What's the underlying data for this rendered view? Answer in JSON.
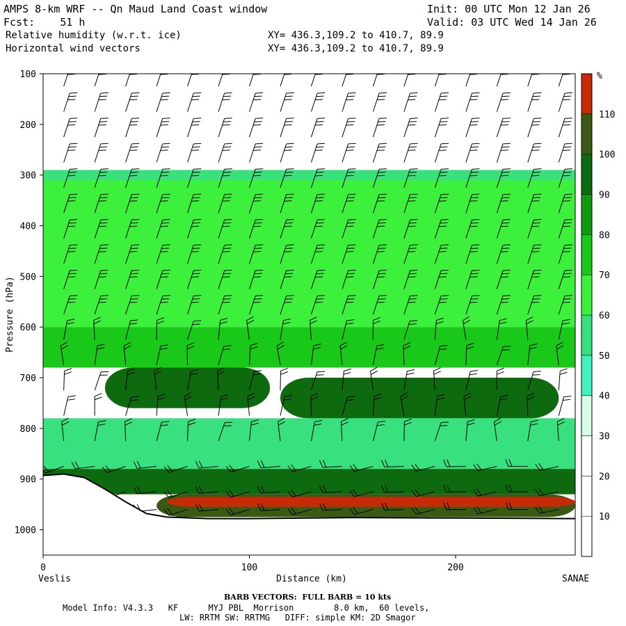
{
  "header": {
    "line1_left": "AMPS 8-km WRF -- Qn Maud Land Coast window",
    "line2_left": "Fcst:    51 h",
    "line3_left": "Relative humidity (w.r.t. ice)",
    "line4_left": "Horizontal wind vectors",
    "line1_right": "Init: 00 UTC Mon 12 Jan 26",
    "line2_right": "Valid: 03 UTC Wed 14 Jan 26",
    "line3_mid": "XY= 436.3,109.2 to 410.7, 89.9",
    "line4_mid": "XY= 436.3,109.2 to 410.7, 89.9"
  },
  "chart_data": {
    "type": "heatmap",
    "title": "Relative humidity (w.r.t. ice)",
    "xlabel": "Distance (km)",
    "ylabel": "Pressure (hPa)",
    "xlim": [
      0,
      258
    ],
    "ylim": [
      1050,
      100
    ],
    "x_ticks": [
      0,
      100,
      200
    ],
    "y_ticks": [
      100,
      200,
      300,
      400,
      500,
      600,
      700,
      800,
      900,
      1000
    ],
    "x_end_labels": {
      "left": "Veslis",
      "right": "SANAE"
    },
    "colorbar": {
      "unit": "%",
      "levels": [
        10,
        20,
        30,
        40,
        50,
        60,
        70,
        80,
        90,
        100,
        110
      ],
      "colors": [
        "#ffffff",
        "#ffffff",
        "#ffffff",
        "#d6fde6",
        "#43f0c0",
        "#39e07e",
        "#3cf03c",
        "#19c819",
        "#0f9a0f",
        "#0e6a0e",
        "#3a5a14",
        "#c62a06"
      ]
    },
    "regions": [
      {
        "name": "upper-dry",
        "rh": 0,
        "p_top": 100,
        "p_bottom": 290
      },
      {
        "name": "tropopause-moist",
        "rh": 55,
        "p_top": 290,
        "p_bottom": 310
      },
      {
        "name": "upper-midlevel",
        "rh": 65,
        "p_top": 310,
        "p_bottom": 600
      },
      {
        "name": "midlevel-moist",
        "rh": 75,
        "p_top": 600,
        "p_bottom": 680
      },
      {
        "name": "midlevel-core-west",
        "rh": 95,
        "x_start": 30,
        "x_end": 110,
        "p_top": 680,
        "p_bottom": 760
      },
      {
        "name": "midlevel-core-east",
        "rh": 95,
        "x_start": 115,
        "x_end": 250,
        "p_top": 700,
        "p_bottom": 780
      },
      {
        "name": "lower-moist",
        "rh": 55,
        "p_top": 780,
        "p_bottom": 880
      },
      {
        "name": "boundary-layer",
        "rh": 90,
        "p_top": 880,
        "p_bottom": 930
      },
      {
        "name": "surface-saturated",
        "rh": 105,
        "x_start": 55,
        "x_end": 258,
        "p_top": 930,
        "p_bottom": 975
      },
      {
        "name": "supersaturated",
        "rh": 115,
        "x_start": 60,
        "x_end": 258,
        "p_top": 935,
        "p_bottom": 955
      }
    ],
    "terrain": {
      "x": [
        0,
        10,
        20,
        30,
        40,
        50,
        60,
        80,
        100,
        150,
        200,
        258
      ],
      "p": [
        893,
        890,
        897,
        920,
        945,
        968,
        975,
        978,
        978,
        976,
        977,
        978
      ]
    },
    "barb_columns_x": [
      10,
      25,
      40,
      55,
      70,
      85,
      100,
      115,
      130,
      145,
      160,
      175,
      190,
      205,
      220,
      235,
      250
    ],
    "barb_levels_p": [
      125,
      175,
      225,
      275,
      325,
      375,
      425,
      475,
      525,
      575,
      625,
      675,
      725,
      775,
      825,
      875,
      925,
      960
    ]
  },
  "footer": {
    "barb_note": "BARB VECTORS:  FULL BARB = 10 kts",
    "model_info_1": "Model Info: V4.3.3   KF      MYJ PBL  Morrison        8.0 km,  60 levels,",
    "model_info_2": "LW: RRTM SW: RRTMG   DIFF: simple KM: 2D Smagor"
  }
}
